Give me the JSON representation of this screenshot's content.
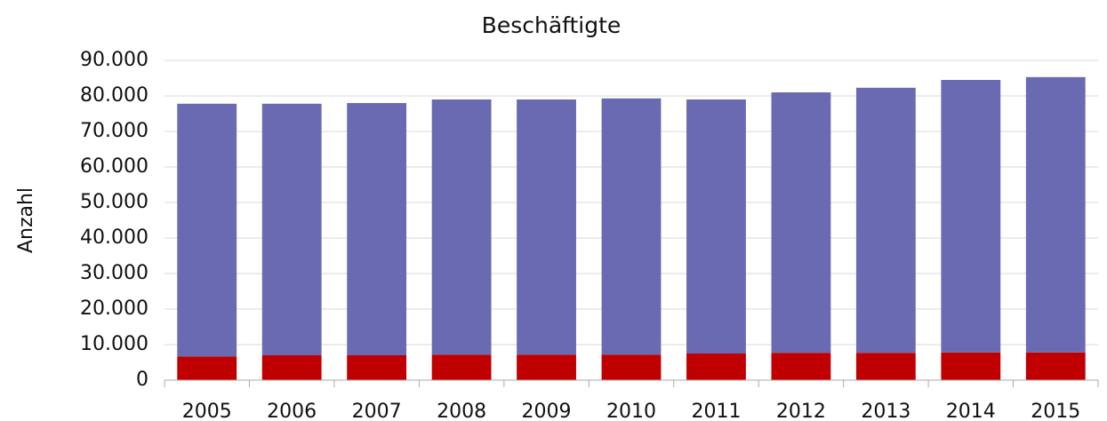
{
  "chart_data": {
    "type": "stacked_bar",
    "title": "Beschäftigte",
    "y_label": "Anzahl",
    "categories": [
      "2005",
      "2006",
      "2007",
      "2008",
      "2009",
      "2010",
      "2011",
      "2012",
      "2013",
      "2014",
      "2015"
    ],
    "series": [
      {
        "color": "#c00000",
        "values": [
          6700,
          7000,
          7000,
          7200,
          7200,
          7200,
          7500,
          7700,
          7700,
          7800,
          7800
        ]
      },
      {
        "color": "#6a6ab3",
        "values": [
          71100,
          70800,
          71000,
          71800,
          71800,
          72100,
          71500,
          73300,
          74600,
          76700,
          77500
        ]
      }
    ],
    "ylim": [
      0,
      90000
    ],
    "yticks": [
      0,
      {
        "value": 10000,
        "label": "10.000"
      },
      {
        "value": 20000,
        "label": "20.000"
      },
      {
        "value": 30000,
        "label": "30.000"
      },
      {
        "value": 40000,
        "label": "40.000"
      },
      {
        "value": 50000,
        "label": "50.000"
      },
      {
        "value": 60000,
        "label": "60.000"
      },
      {
        "value": 70000,
        "label": "70.000"
      },
      {
        "value": 80000,
        "label": "80.000"
      },
      {
        "value": 90000,
        "label": "90.000"
      }
    ],
    "grid": true
  }
}
